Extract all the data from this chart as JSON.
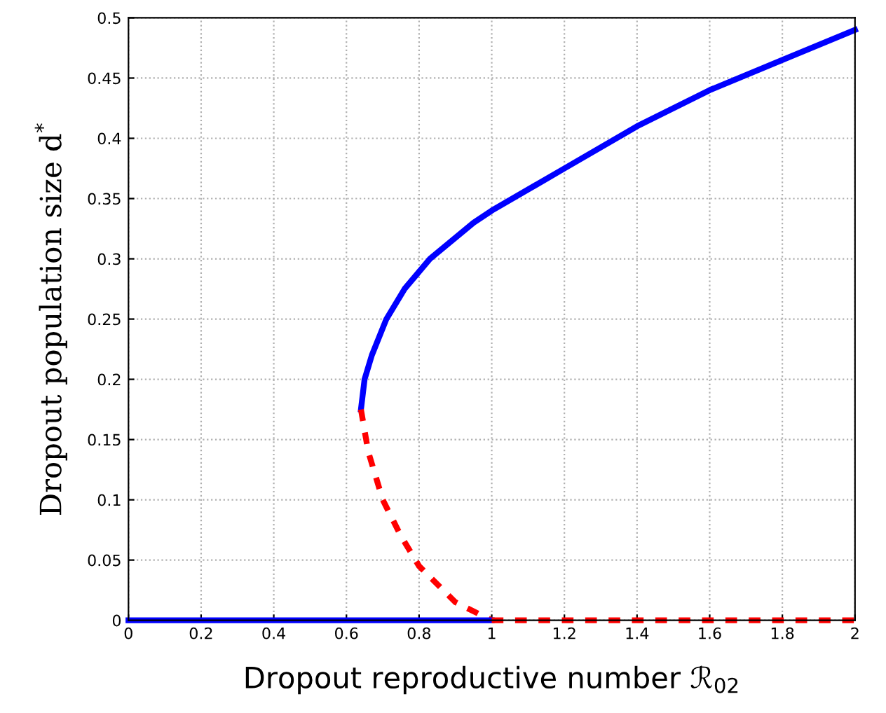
{
  "chart_data": {
    "type": "line",
    "xlabel": "Dropout reproductive number ℛ$_{02}$",
    "ylabel": "Dropout population size d$^{*}$",
    "xlim": [
      0,
      2
    ],
    "ylim": [
      0,
      0.5
    ],
    "xticks": [
      0,
      0.2,
      0.4,
      0.6,
      0.8,
      1,
      1.2,
      1.4,
      1.6,
      1.8,
      2
    ],
    "yticks": [
      0,
      0.05,
      0.1,
      0.15,
      0.2,
      0.25,
      0.3,
      0.35,
      0.4,
      0.45,
      0.5
    ],
    "grid": true,
    "marker": "none",
    "series": [
      {
        "color": "#0000ff",
        "line_style": "solid",
        "x": [
          0.64,
          0.65,
          0.67,
          0.71,
          0.76,
          0.83,
          0.95,
          1.0,
          1.2,
          1.4,
          1.6,
          1.8,
          2.0
        ],
        "values": [
          0.175,
          0.2,
          0.22,
          0.25,
          0.275,
          0.3,
          0.33,
          0.34,
          0.375,
          0.41,
          0.44,
          0.465,
          0.49
        ]
      },
      {
        "color": "#ff0000",
        "line_style": "dashed",
        "x": [
          0.64,
          0.66,
          0.7,
          0.75,
          0.8,
          0.9,
          1.0
        ],
        "values": [
          0.175,
          0.14,
          0.1,
          0.07,
          0.045,
          0.015,
          0
        ]
      },
      {
        "color": "#0000ff",
        "line_style": "solid",
        "x": [
          0,
          1
        ],
        "values": [
          0,
          0
        ]
      },
      {
        "color": "#ff0000",
        "line_style": "dashed",
        "x": [
          1,
          2
        ],
        "values": [
          0,
          0
        ]
      }
    ]
  }
}
